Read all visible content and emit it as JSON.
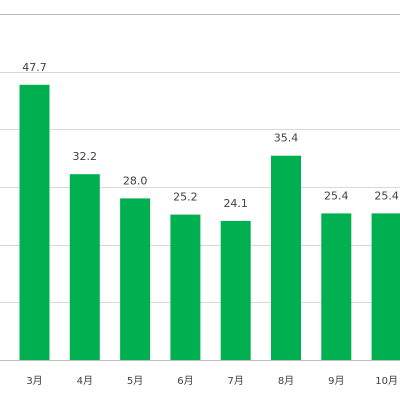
{
  "chart_data": {
    "type": "bar",
    "categories": [
      "3月",
      "4月",
      "5月",
      "6月",
      "7月",
      "8月",
      "9月",
      "10月"
    ],
    "values": [
      47.7,
      32.2,
      28.0,
      25.2,
      24.1,
      35.4,
      25.4,
      25.4
    ],
    "value_labels": [
      "47.7",
      "32.2",
      "28.0",
      "25.2",
      "24.1",
      "35.4",
      "25.4",
      "25.4"
    ],
    "title": "",
    "xlabel": "",
    "ylabel": "",
    "ylim": [
      0,
      60
    ],
    "grid": true,
    "legend": "none",
    "bar_color": "#00b050"
  }
}
